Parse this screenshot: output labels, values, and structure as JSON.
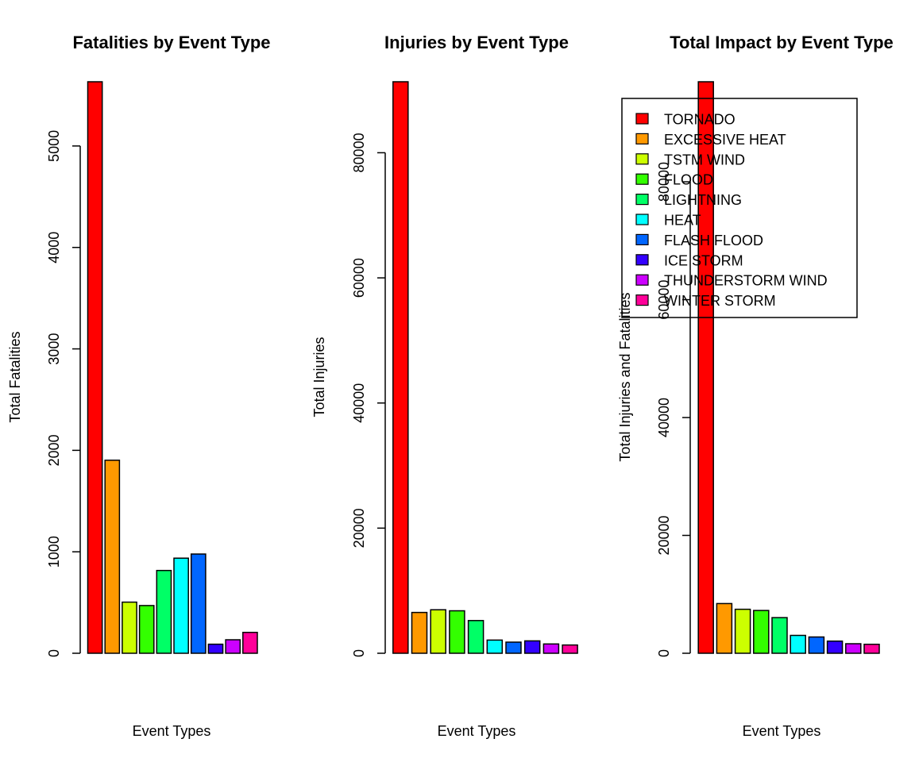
{
  "chart_data": [
    {
      "type": "bar",
      "title": "Fatalities by Event Type",
      "xlabel": "Event Types",
      "ylabel": "Total Fatalities",
      "categories": [
        "TORNADO",
        "EXCESSIVE HEAT",
        "TSTM WIND",
        "FLOOD",
        "LIGHTNING",
        "HEAT",
        "FLASH FLOOD",
        "ICE STORM",
        "THUNDERSTORM WIND",
        "WINTER STORM"
      ],
      "values": [
        5633,
        1903,
        504,
        470,
        816,
        937,
        978,
        89,
        133,
        206
      ],
      "ylim": [
        0,
        5633
      ],
      "yticks": [
        0,
        1000,
        2000,
        3000,
        4000,
        5000
      ],
      "grid": false
    },
    {
      "type": "bar",
      "title": "Injuries by Event Type",
      "xlabel": "Event Types",
      "ylabel": "Total Injuries",
      "categories": [
        "TORNADO",
        "EXCESSIVE HEAT",
        "TSTM WIND",
        "FLOOD",
        "LIGHTNING",
        "HEAT",
        "FLASH FLOOD",
        "ICE STORM",
        "THUNDERSTORM WIND",
        "WINTER STORM"
      ],
      "values": [
        91346,
        6525,
        6957,
        6789,
        5230,
        2100,
        1777,
        1975,
        1488,
        1321
      ],
      "ylim": [
        0,
        91346
      ],
      "yticks": [
        0,
        20000,
        40000,
        60000,
        80000
      ],
      "grid": false
    },
    {
      "type": "bar",
      "title": "Total Impact by Event Type",
      "xlabel": "Event Types",
      "ylabel": "Total Injuries and Fatalities",
      "categories": [
        "TORNADO",
        "EXCESSIVE HEAT",
        "TSTM WIND",
        "FLOOD",
        "LIGHTNING",
        "HEAT",
        "FLASH FLOOD",
        "ICE STORM",
        "THUNDERSTORM WIND",
        "WINTER STORM"
      ],
      "values": [
        96979,
        8428,
        7461,
        7259,
        6046,
        3037,
        2755,
        2064,
        1621,
        1527
      ],
      "ylim": [
        0,
        96979
      ],
      "yticks": [
        0,
        20000,
        40000,
        60000,
        80000
      ],
      "grid": false,
      "legend": {
        "placement": "top-right",
        "entries": [
          "TORNADO",
          "EXCESSIVE HEAT",
          "TSTM WIND",
          "FLOOD",
          "LIGHTNING",
          "HEAT",
          "FLASH FLOOD",
          "ICE STORM",
          "THUNDERSTORM WIND",
          "WINTER STORM"
        ]
      }
    }
  ],
  "colors": [
    "#FF0000",
    "#FF9900",
    "#CCFF00",
    "#33FF00",
    "#00FF66",
    "#00FFFF",
    "#0066FF",
    "#3300FF",
    "#CC00FF",
    "#FF0099"
  ]
}
